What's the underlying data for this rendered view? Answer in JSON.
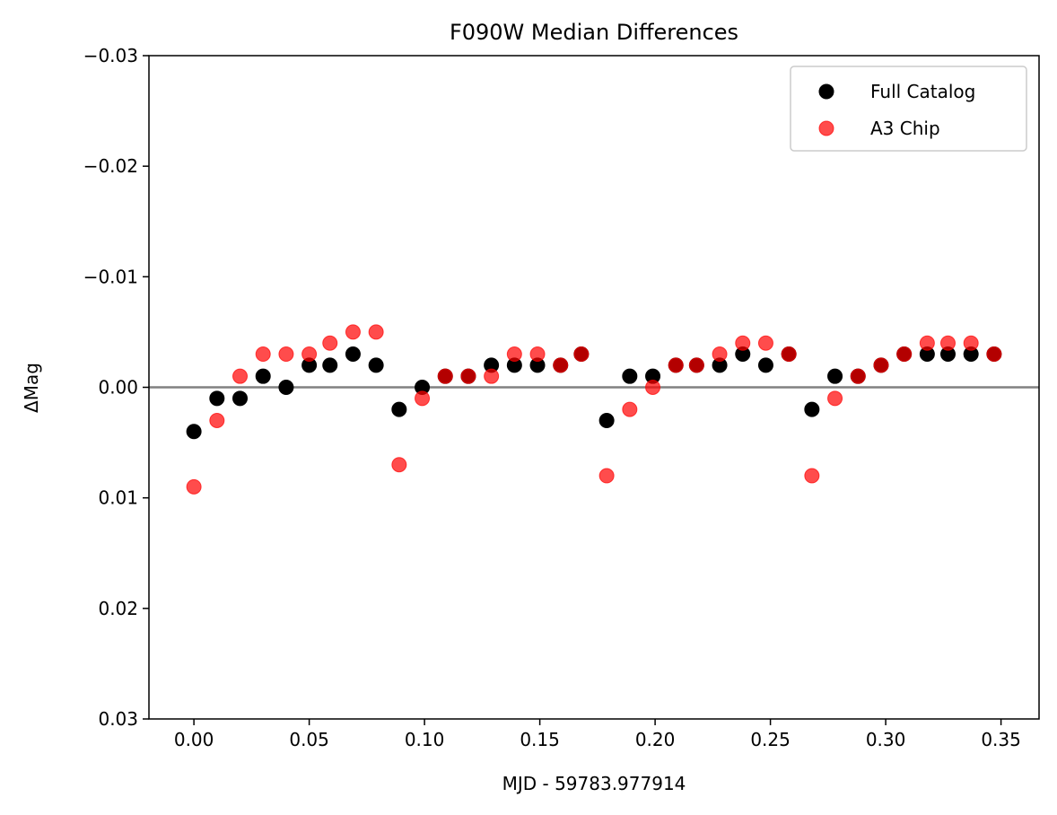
{
  "chart_data": {
    "type": "scatter",
    "title": "F090W Median Differences",
    "xlabel": "MJD - 59783.977914",
    "ylabel": "ΔMag",
    "xlim": [
      -0.0195,
      0.3665
    ],
    "ylim": [
      0.03,
      -0.03
    ],
    "y_inverted": true,
    "x_ticks": [
      0.0,
      0.05,
      0.1,
      0.15,
      0.2,
      0.25,
      0.3,
      0.35
    ],
    "x_tick_labels": [
      "0.00",
      "0.05",
      "0.10",
      "0.15",
      "0.20",
      "0.25",
      "0.30",
      "0.35"
    ],
    "y_ticks": [
      -0.03,
      -0.02,
      -0.01,
      0.0,
      0.01,
      0.02,
      0.03
    ],
    "y_tick_labels": [
      "−0.03",
      "−0.02",
      "−0.01",
      "0.00",
      "0.01",
      "0.02",
      "0.03"
    ],
    "reference_line": {
      "y": 0.0,
      "color": "#808080"
    },
    "legend_position": "top-right",
    "series": [
      {
        "name": "Full Catalog",
        "color": "#000000",
        "alpha": 1.0,
        "x": [
          0.0,
          0.01,
          0.02,
          0.03,
          0.04,
          0.05,
          0.059,
          0.069,
          0.079,
          0.089,
          0.099,
          0.109,
          0.119,
          0.129,
          0.139,
          0.149,
          0.159,
          0.168,
          0.179,
          0.189,
          0.199,
          0.209,
          0.218,
          0.228,
          0.238,
          0.248,
          0.258,
          0.268,
          0.278,
          0.288,
          0.298,
          0.308,
          0.318,
          0.327,
          0.337,
          0.347
        ],
        "y": [
          0.004,
          0.001,
          0.001,
          -0.001,
          0.0,
          -0.002,
          -0.002,
          -0.003,
          -0.002,
          0.002,
          0.0,
          -0.001,
          -0.001,
          -0.002,
          -0.002,
          -0.002,
          -0.002,
          -0.003,
          0.003,
          -0.001,
          -0.001,
          -0.002,
          -0.002,
          -0.002,
          -0.003,
          -0.002,
          -0.003,
          0.002,
          -0.001,
          -0.001,
          -0.002,
          -0.003,
          -0.003,
          -0.003,
          -0.003,
          -0.003
        ]
      },
      {
        "name": "A3 Chip",
        "color": "#ff0000",
        "alpha": 0.7,
        "x": [
          0.0,
          0.01,
          0.02,
          0.03,
          0.04,
          0.05,
          0.059,
          0.069,
          0.079,
          0.089,
          0.099,
          0.109,
          0.119,
          0.129,
          0.139,
          0.149,
          0.159,
          0.168,
          0.179,
          0.189,
          0.199,
          0.209,
          0.218,
          0.228,
          0.238,
          0.248,
          0.258,
          0.268,
          0.278,
          0.288,
          0.298,
          0.308,
          0.318,
          0.327,
          0.337,
          0.347
        ],
        "y": [
          0.009,
          0.003,
          -0.001,
          -0.003,
          -0.003,
          -0.003,
          -0.004,
          -0.005,
          -0.005,
          0.007,
          0.001,
          -0.001,
          -0.001,
          -0.001,
          -0.003,
          -0.003,
          -0.002,
          -0.003,
          0.008,
          0.002,
          0.0,
          -0.002,
          -0.002,
          -0.003,
          -0.004,
          -0.004,
          -0.003,
          0.008,
          0.001,
          -0.001,
          -0.002,
          -0.003,
          -0.004,
          -0.004,
          -0.004,
          -0.003
        ]
      }
    ]
  }
}
